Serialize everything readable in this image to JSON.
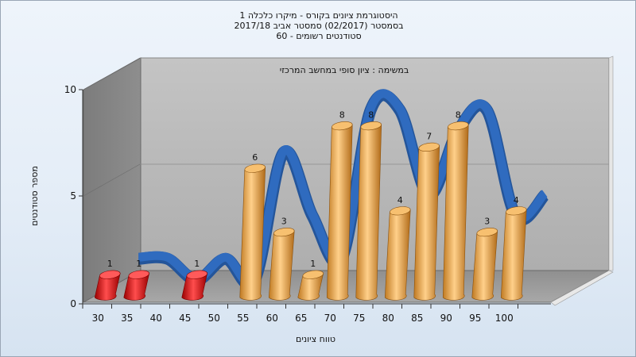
{
  "chart_data": {
    "type": "bar",
    "title_lines": [
      "היסטוגרמת ציונים בקורס - מיקרו כלכלה 1",
      "בסמסטר  (02/2017)  סמסטר אביב 2017/18",
      "סטודנטים רשומים - 60"
    ],
    "subtitle": "במשימה : ציון סופי במחשב המרכזי",
    "xlabel": "טווח ציונים",
    "ylabel": "מספר סטודנטים",
    "categories": [
      "30",
      "35",
      "40",
      "45",
      "50",
      "55",
      "60",
      "65",
      "70",
      "75",
      "80",
      "85",
      "90",
      "95",
      "100"
    ],
    "values": [
      1,
      1,
      0,
      1,
      0,
      6,
      3,
      1,
      8,
      8,
      4,
      7,
      8,
      3,
      4
    ],
    "data_labels": [
      "1",
      "1",
      "",
      "1",
      "",
      "6",
      "3",
      "1",
      "8",
      "8",
      "4",
      "7",
      "8",
      "3",
      "4"
    ],
    "failing_below": 55,
    "yticks": [
      0,
      5,
      10
    ],
    "ylim": [
      0,
      10
    ],
    "trend_line": true,
    "grid": true,
    "colors": {
      "failing_bar": "#e01818",
      "passing_bar": "#e8a84a",
      "trend_line": "#2f6bbf",
      "back_wall": "#b9b9b9",
      "side_wall": "#8a8a8a",
      "floor": "#9a9a9a"
    }
  }
}
